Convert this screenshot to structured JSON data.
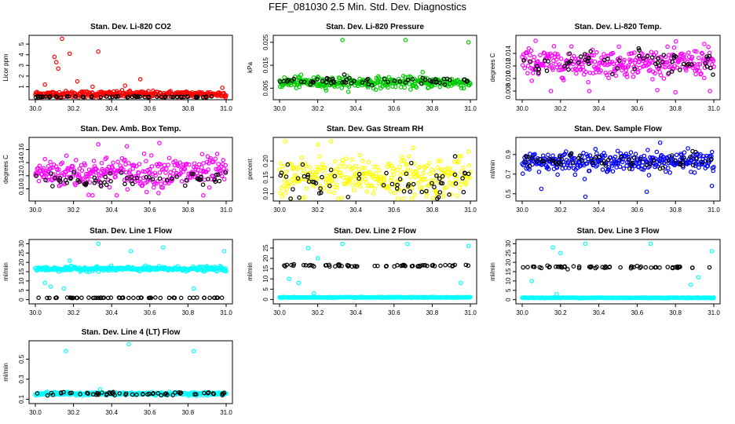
{
  "title": "FEF_081030  2.5 Min. Std. Dev. Diagnostics",
  "shared_x_ticks": [
    "30.0",
    "30.2",
    "30.4",
    "30.6",
    "30.8",
    "31.0"
  ],
  "colors": {
    "red": "#ff0000",
    "green": "#00cc00",
    "magenta": "#ff00ff",
    "yellow": "#ffff00",
    "blue": "#0000ff",
    "cyan": "#00ffff",
    "black": "#000000"
  },
  "chart_data": [
    {
      "type": "scatter",
      "title": "Stan. Dev. Li-820 CO2",
      "ylabel": "Licor ppm",
      "xlim": [
        30.0,
        31.0
      ],
      "ylim": [
        0,
        5.6
      ],
      "yticks": [
        {
          "v": 1,
          "label": "1"
        },
        {
          "v": 2,
          "label": "2"
        },
        {
          "v": 3,
          "label": "3"
        },
        {
          "v": 4,
          "label": "4"
        },
        {
          "v": 5,
          "label": "5"
        }
      ],
      "color": "red",
      "base": 0.3,
      "spread": 0.25,
      "black_level": 0.05,
      "black_spread": 0.05,
      "outliers": [
        [
          30.14,
          5.5
        ],
        [
          30.1,
          3.8
        ],
        [
          30.11,
          3.3
        ],
        [
          30.18,
          4.1
        ],
        [
          30.33,
          4.3
        ],
        [
          30.05,
          1.2
        ],
        [
          30.22,
          1.5
        ],
        [
          30.55,
          1.7
        ],
        [
          30.47,
          1.1
        ],
        [
          30.98,
          0.9
        ],
        [
          30.12,
          2.7
        ],
        [
          30.3,
          1.0
        ]
      ]
    },
    {
      "type": "scatter",
      "title": "Stan. Dev. Li-820 Pressure",
      "ylabel": "kPa",
      "xlim": [
        30.0,
        31.0
      ],
      "ylim": [
        0.001,
        0.027
      ],
      "yticks": [
        {
          "v": 0.005,
          "label": "0.005"
        },
        {
          "v": 0.015,
          "label": "0.015"
        },
        {
          "v": 0.025,
          "label": "0.025"
        }
      ],
      "color": "green",
      "base": 0.0075,
      "spread": 0.002,
      "black_level": 0.008,
      "black_spread": 0.0015,
      "outliers": [
        [
          30.33,
          0.026
        ],
        [
          30.66,
          0.026
        ],
        [
          30.99,
          0.025
        ],
        [
          30.75,
          0.012
        ],
        [
          30.1,
          0.01
        ]
      ]
    },
    {
      "type": "scatter",
      "title": "Stan. Dev. Li-820 Temp.",
      "ylabel": "degrees C",
      "xlim": [
        30.0,
        31.0
      ],
      "ylim": [
        0.007,
        0.0165
      ],
      "yticks": [
        {
          "v": 0.008,
          "label": "0.008"
        },
        {
          "v": 0.01,
          "label": "0.010"
        },
        {
          "v": 0.012,
          "label": "0.012"
        },
        {
          "v": 0.014,
          "label": "0.014"
        }
      ],
      "color": "magenta",
      "base": 0.0125,
      "spread": 0.0018,
      "black_level": 0.0125,
      "black_spread": 0.0015,
      "outliers": [
        [
          30.07,
          0.016
        ],
        [
          30.15,
          0.008
        ],
        [
          30.35,
          0.008
        ],
        [
          30.8,
          0.0078
        ],
        [
          30.98,
          0.008
        ],
        [
          30.95,
          0.0155
        ]
      ]
    },
    {
      "type": "scatter",
      "title": "Stan. Dev. Amb. Box Temp.",
      "ylabel": "degrees C",
      "xlim": [
        30.0,
        31.0
      ],
      "ylim": [
        0.085,
        0.175
      ],
      "yticks": [
        {
          "v": 0.1,
          "label": "0.10"
        },
        {
          "v": 0.12,
          "label": "0.12"
        },
        {
          "v": 0.14,
          "label": "0.14"
        },
        {
          "v": 0.16,
          "label": "0.16"
        }
      ],
      "color": "magenta",
      "base": 0.125,
      "spread": 0.02,
      "black_level": 0.115,
      "black_spread": 0.01,
      "outliers": [
        [
          30.65,
          0.17
        ],
        [
          30.33,
          0.168
        ],
        [
          30.48,
          0.165
        ],
        [
          30.3,
          0.09
        ],
        [
          30.88,
          0.09
        ]
      ]
    },
    {
      "type": "scatter",
      "title": "Stan. Dev. Gas Stream RH",
      "ylabel": "percent",
      "xlim": [
        30.0,
        31.0
      ],
      "ylim": [
        0.085,
        0.265
      ],
      "yticks": [
        {
          "v": 0.1,
          "label": "0.10"
        },
        {
          "v": 0.15,
          "label": "0.15"
        },
        {
          "v": 0.2,
          "label": "0.20"
        }
      ],
      "color": "yellow",
      "base": 0.15,
      "spread": 0.05,
      "black_level": 0.14,
      "black_spread": 0.05,
      "outliers": [
        [
          30.03,
          0.26
        ],
        [
          30.27,
          0.26
        ],
        [
          30.2,
          0.25
        ],
        [
          30.7,
          0.24
        ]
      ]
    },
    {
      "type": "scatter",
      "title": "Stan. Dev. Sample Flow",
      "ylabel": "ml/min",
      "xlim": [
        30.0,
        31.0
      ],
      "ylim": [
        0.45,
        1.05
      ],
      "yticks": [
        {
          "v": 0.5,
          "label": "0.5"
        },
        {
          "v": 0.7,
          "label": "0.7"
        },
        {
          "v": 0.9,
          "label": "0.9"
        }
      ],
      "color": "blue",
      "base": 0.83,
      "spread": 0.08,
      "black_level": 0.84,
      "black_spread": 0.06,
      "outliers": [
        [
          30.33,
          0.47
        ],
        [
          30.65,
          0.52
        ],
        [
          30.99,
          0.58
        ],
        [
          30.1,
          0.55
        ],
        [
          30.72,
          1.02
        ]
      ]
    },
    {
      "type": "scatter",
      "title": "Stan. Dev. Line 1 Flow",
      "ylabel": "ml/min",
      "xlim": [
        30.0,
        31.0
      ],
      "ylim": [
        -1,
        31
      ],
      "yticks": [
        {
          "v": 0,
          "label": "0"
        },
        {
          "v": 5,
          "label": "5"
        },
        {
          "v": 10,
          "label": "10"
        },
        {
          "v": 15,
          "label": "15"
        },
        {
          "v": 20,
          "label": "20"
        },
        {
          "v": 25,
          "label": "25"
        },
        {
          "v": 30,
          "label": "30"
        }
      ],
      "color": "cyan",
      "base": 16.5,
      "spread": 1.0,
      "black_level": 1.0,
      "black_spread": 0.1,
      "outliers": [
        [
          30.33,
          30
        ],
        [
          30.5,
          26
        ],
        [
          30.67,
          28
        ],
        [
          30.99,
          26
        ],
        [
          30.15,
          6
        ],
        [
          30.18,
          21
        ],
        [
          30.83,
          6
        ],
        [
          30.05,
          9
        ],
        [
          30.08,
          7
        ]
      ]
    },
    {
      "type": "scatter",
      "title": "Stan. Dev. Line 2 Flow",
      "ylabel": "ml/min",
      "xlim": [
        30.0,
        31.0
      ],
      "ylim": [
        -1,
        28
      ],
      "yticks": [
        {
          "v": 0,
          "label": "0"
        },
        {
          "v": 5,
          "label": "5"
        },
        {
          "v": 10,
          "label": "10"
        },
        {
          "v": 15,
          "label": "15"
        },
        {
          "v": 20,
          "label": "20"
        },
        {
          "v": 25,
          "label": "25"
        }
      ],
      "color": "cyan",
      "base": 1.0,
      "spread": 0.15,
      "black_level": 16.5,
      "black_spread": 0.5,
      "outliers": [
        [
          30.33,
          27
        ],
        [
          30.67,
          27
        ],
        [
          30.99,
          26
        ],
        [
          30.15,
          25
        ],
        [
          30.05,
          10
        ],
        [
          30.1,
          8
        ],
        [
          30.18,
          3
        ],
        [
          30.2,
          20
        ],
        [
          30.95,
          8
        ]
      ]
    },
    {
      "type": "scatter",
      "title": "Stan. Dev. Line 3 Flow",
      "ylabel": "ml/min",
      "xlim": [
        30.0,
        31.0
      ],
      "ylim": [
        -1,
        31
      ],
      "yticks": [
        {
          "v": 0,
          "label": "0"
        },
        {
          "v": 5,
          "label": "5"
        },
        {
          "v": 10,
          "label": "10"
        },
        {
          "v": 15,
          "label": "15"
        },
        {
          "v": 20,
          "label": "20"
        },
        {
          "v": 25,
          "label": "25"
        },
        {
          "v": 30,
          "label": "30"
        }
      ],
      "color": "cyan",
      "base": 1.0,
      "spread": 0.15,
      "black_level": 17.5,
      "black_spread": 0.6,
      "outliers": [
        [
          30.33,
          30
        ],
        [
          30.67,
          30
        ],
        [
          30.99,
          26
        ],
        [
          30.16,
          28
        ],
        [
          30.2,
          25
        ],
        [
          30.05,
          10
        ],
        [
          30.18,
          3
        ],
        [
          30.88,
          8
        ],
        [
          30.92,
          12
        ]
      ]
    },
    {
      "type": "scatter",
      "title": "Stan. Dev. Line 4 (LT) Flow",
      "ylabel": "ml/min",
      "xlim": [
        30.0,
        31.0
      ],
      "ylim": [
        0.08,
        0.66
      ],
      "yticks": [
        {
          "v": 0.1,
          "label": "0.1"
        },
        {
          "v": 0.3,
          "label": "0.3"
        },
        {
          "v": 0.5,
          "label": "0.5"
        }
      ],
      "color": "cyan",
      "base": 0.155,
      "spread": 0.012,
      "black_level": 0.155,
      "black_spread": 0.015,
      "outliers": [
        [
          30.16,
          0.58
        ],
        [
          30.49,
          0.65
        ],
        [
          30.83,
          0.58
        ],
        [
          30.34,
          0.2
        ]
      ]
    }
  ]
}
